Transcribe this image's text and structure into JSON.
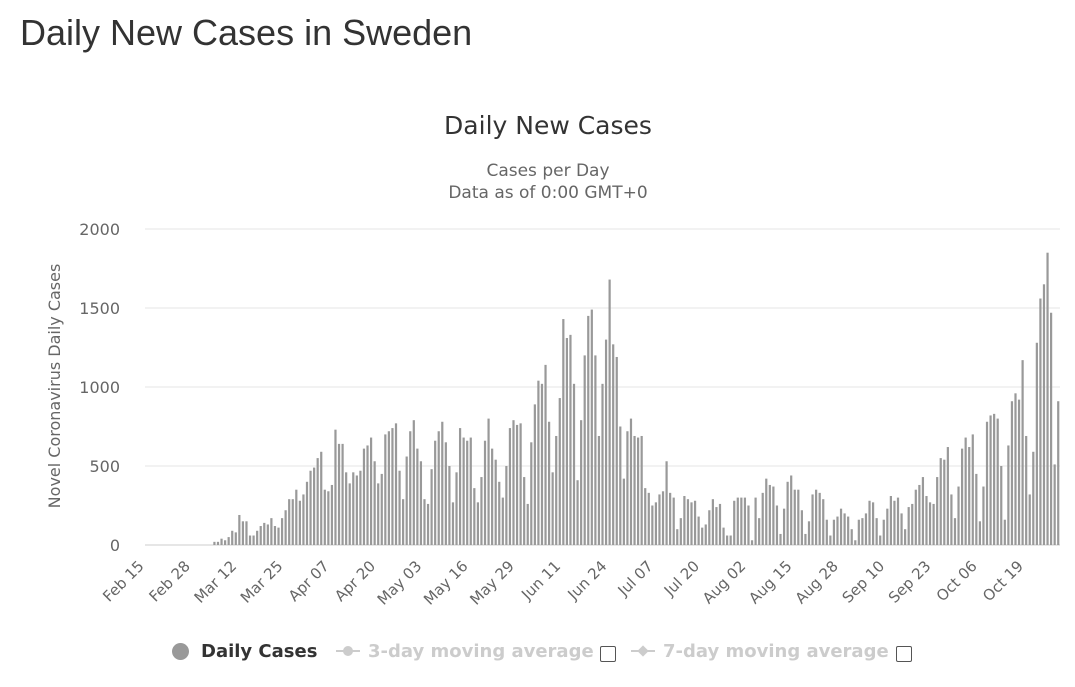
{
  "page": {
    "title": "Daily New Cases in Sweden"
  },
  "colors": {
    "bar": "#999999",
    "grid": "#e6e6e6",
    "text": "#333333",
    "axis_text": "#666666",
    "legend_hidden": "#cccccc"
  },
  "legend": {
    "daily_cases": "Daily Cases",
    "avg3": "3-day moving average",
    "avg7": "7-day moving average"
  },
  "chart_data": {
    "type": "bar",
    "title": "Daily New Cases",
    "subtitle_line1": "Cases per Day",
    "subtitle_line2": "Data as of 0:00 GMT+0",
    "xlabel": "",
    "ylabel": "Novel Coronavirus Daily Cases",
    "ylim": [
      0,
      2000
    ],
    "y_ticks": [
      0,
      500,
      1000,
      1500,
      2000
    ],
    "y_tick_labels": [
      "0",
      "500",
      "1000",
      "1500",
      "2000"
    ],
    "grid": true,
    "x_tick_labels": [
      "Feb 15",
      "Feb 28",
      "Mar 12",
      "Mar 25",
      "Apr 07",
      "Apr 20",
      "May 03",
      "May 16",
      "May 29",
      "Jun 11",
      "Jun 24",
      "Jul 07",
      "Jul 20",
      "Aug 02",
      "Aug 15",
      "Aug 28",
      "Sep 10",
      "Sep 23",
      "Oct 06",
      "Oct 19"
    ],
    "x_tick_interval_days": 13,
    "start_date": "Feb 15",
    "series": [
      {
        "name": "Daily Cases",
        "values": [
          0,
          0,
          0,
          0,
          0,
          0,
          0,
          0,
          0,
          0,
          0,
          0,
          0,
          0,
          0,
          0,
          0,
          0,
          0,
          20,
          20,
          40,
          30,
          50,
          90,
          80,
          190,
          150,
          150,
          60,
          60,
          90,
          120,
          140,
          130,
          170,
          120,
          110,
          170,
          220,
          290,
          290,
          350,
          280,
          320,
          400,
          470,
          490,
          550,
          590,
          350,
          340,
          380,
          730,
          640,
          640,
          460,
          390,
          460,
          440,
          470,
          610,
          630,
          680,
          530,
          390,
          450,
          700,
          720,
          740,
          770,
          470,
          290,
          560,
          720,
          790,
          610,
          530,
          290,
          260,
          480,
          660,
          720,
          780,
          650,
          500,
          270,
          460,
          740,
          680,
          660,
          680,
          360,
          270,
          430,
          660,
          800,
          610,
          540,
          400,
          300,
          500,
          740,
          790,
          760,
          770,
          430,
          260,
          650,
          890,
          1040,
          1020,
          1140,
          780,
          460,
          690,
          930,
          1430,
          1310,
          1330,
          1020,
          410,
          790,
          1200,
          1450,
          1490,
          1200,
          690,
          1020,
          1300,
          1680,
          1270,
          1190,
          750,
          420,
          720,
          800,
          690,
          680,
          690,
          360,
          330,
          250,
          270,
          320,
          340,
          530,
          330,
          300,
          100,
          170,
          310,
          290,
          270,
          280,
          180,
          110,
          130,
          220,
          290,
          240,
          260,
          110,
          60,
          60,
          280,
          300,
          300,
          300,
          250,
          30,
          300,
          170,
          330,
          420,
          380,
          370,
          250,
          70,
          230,
          400,
          440,
          350,
          350,
          220,
          70,
          150,
          320,
          350,
          330,
          290,
          160,
          60,
          160,
          180,
          230,
          200,
          180,
          100,
          30,
          160,
          170,
          200,
          280,
          270,
          170,
          60,
          160,
          230,
          310,
          280,
          300,
          200,
          100,
          240,
          260,
          350,
          380,
          430,
          310,
          270,
          260,
          430,
          550,
          540,
          620,
          320,
          170,
          370,
          610,
          680,
          620,
          700,
          450,
          150,
          370,
          780,
          820,
          830,
          800,
          500,
          160,
          630,
          910,
          960,
          920,
          1170,
          690,
          320,
          590,
          1280,
          1560,
          1650,
          1850,
          1470,
          510,
          910
        ]
      },
      {
        "name": "3-day moving average",
        "visible": false
      },
      {
        "name": "7-day moving average",
        "visible": false
      }
    ]
  }
}
